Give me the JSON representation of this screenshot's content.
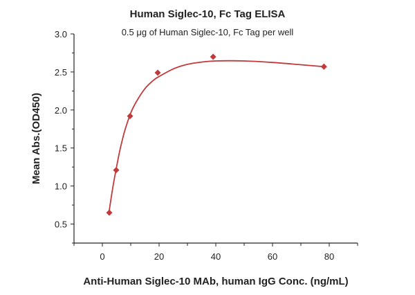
{
  "chart_data": {
    "type": "scatter",
    "title": "Human Siglec-10, Fc Tag ELISA",
    "subtitle": "0.5 μg of Human Siglec-10, Fc Tag per well",
    "xlabel": "Anti-Human Siglec-10 MAb, human IgG Conc. (ng/mL)",
    "ylabel": "Mean Abs.(OD450)",
    "xlim": [
      -10,
      90
    ],
    "ylim": [
      0.25,
      3.0
    ],
    "xticks": [
      0,
      20,
      40,
      60,
      80
    ],
    "yticks": [
      0.5,
      1.0,
      1.5,
      2.0,
      2.5,
      3.0
    ],
    "ytick_labels": [
      "0.5",
      "1.0",
      "1.5",
      "2.0",
      "2.5",
      "3.0"
    ],
    "grid": false,
    "color": "#c0393b",
    "points": [
      {
        "x": 2.44,
        "y": 0.65
      },
      {
        "x": 4.88,
        "y": 1.21
      },
      {
        "x": 9.77,
        "y": 1.92
      },
      {
        "x": 19.53,
        "y": 2.49
      },
      {
        "x": 39.06,
        "y": 2.7
      },
      {
        "x": 78.13,
        "y": 2.57
      }
    ],
    "fit_curve": [
      [
        2.44,
        0.68
      ],
      [
        3,
        0.82
      ],
      [
        4,
        1.05
      ],
      [
        5,
        1.25
      ],
      [
        6,
        1.44
      ],
      [
        7,
        1.6
      ],
      [
        8,
        1.74
      ],
      [
        10,
        1.96
      ],
      [
        12,
        2.11
      ],
      [
        15,
        2.28
      ],
      [
        18,
        2.39
      ],
      [
        20,
        2.44
      ],
      [
        25,
        2.54
      ],
      [
        30,
        2.6
      ],
      [
        35,
        2.63
      ],
      [
        40,
        2.645
      ],
      [
        50,
        2.645
      ],
      [
        60,
        2.625
      ],
      [
        70,
        2.595
      ],
      [
        78.13,
        2.57
      ]
    ]
  }
}
